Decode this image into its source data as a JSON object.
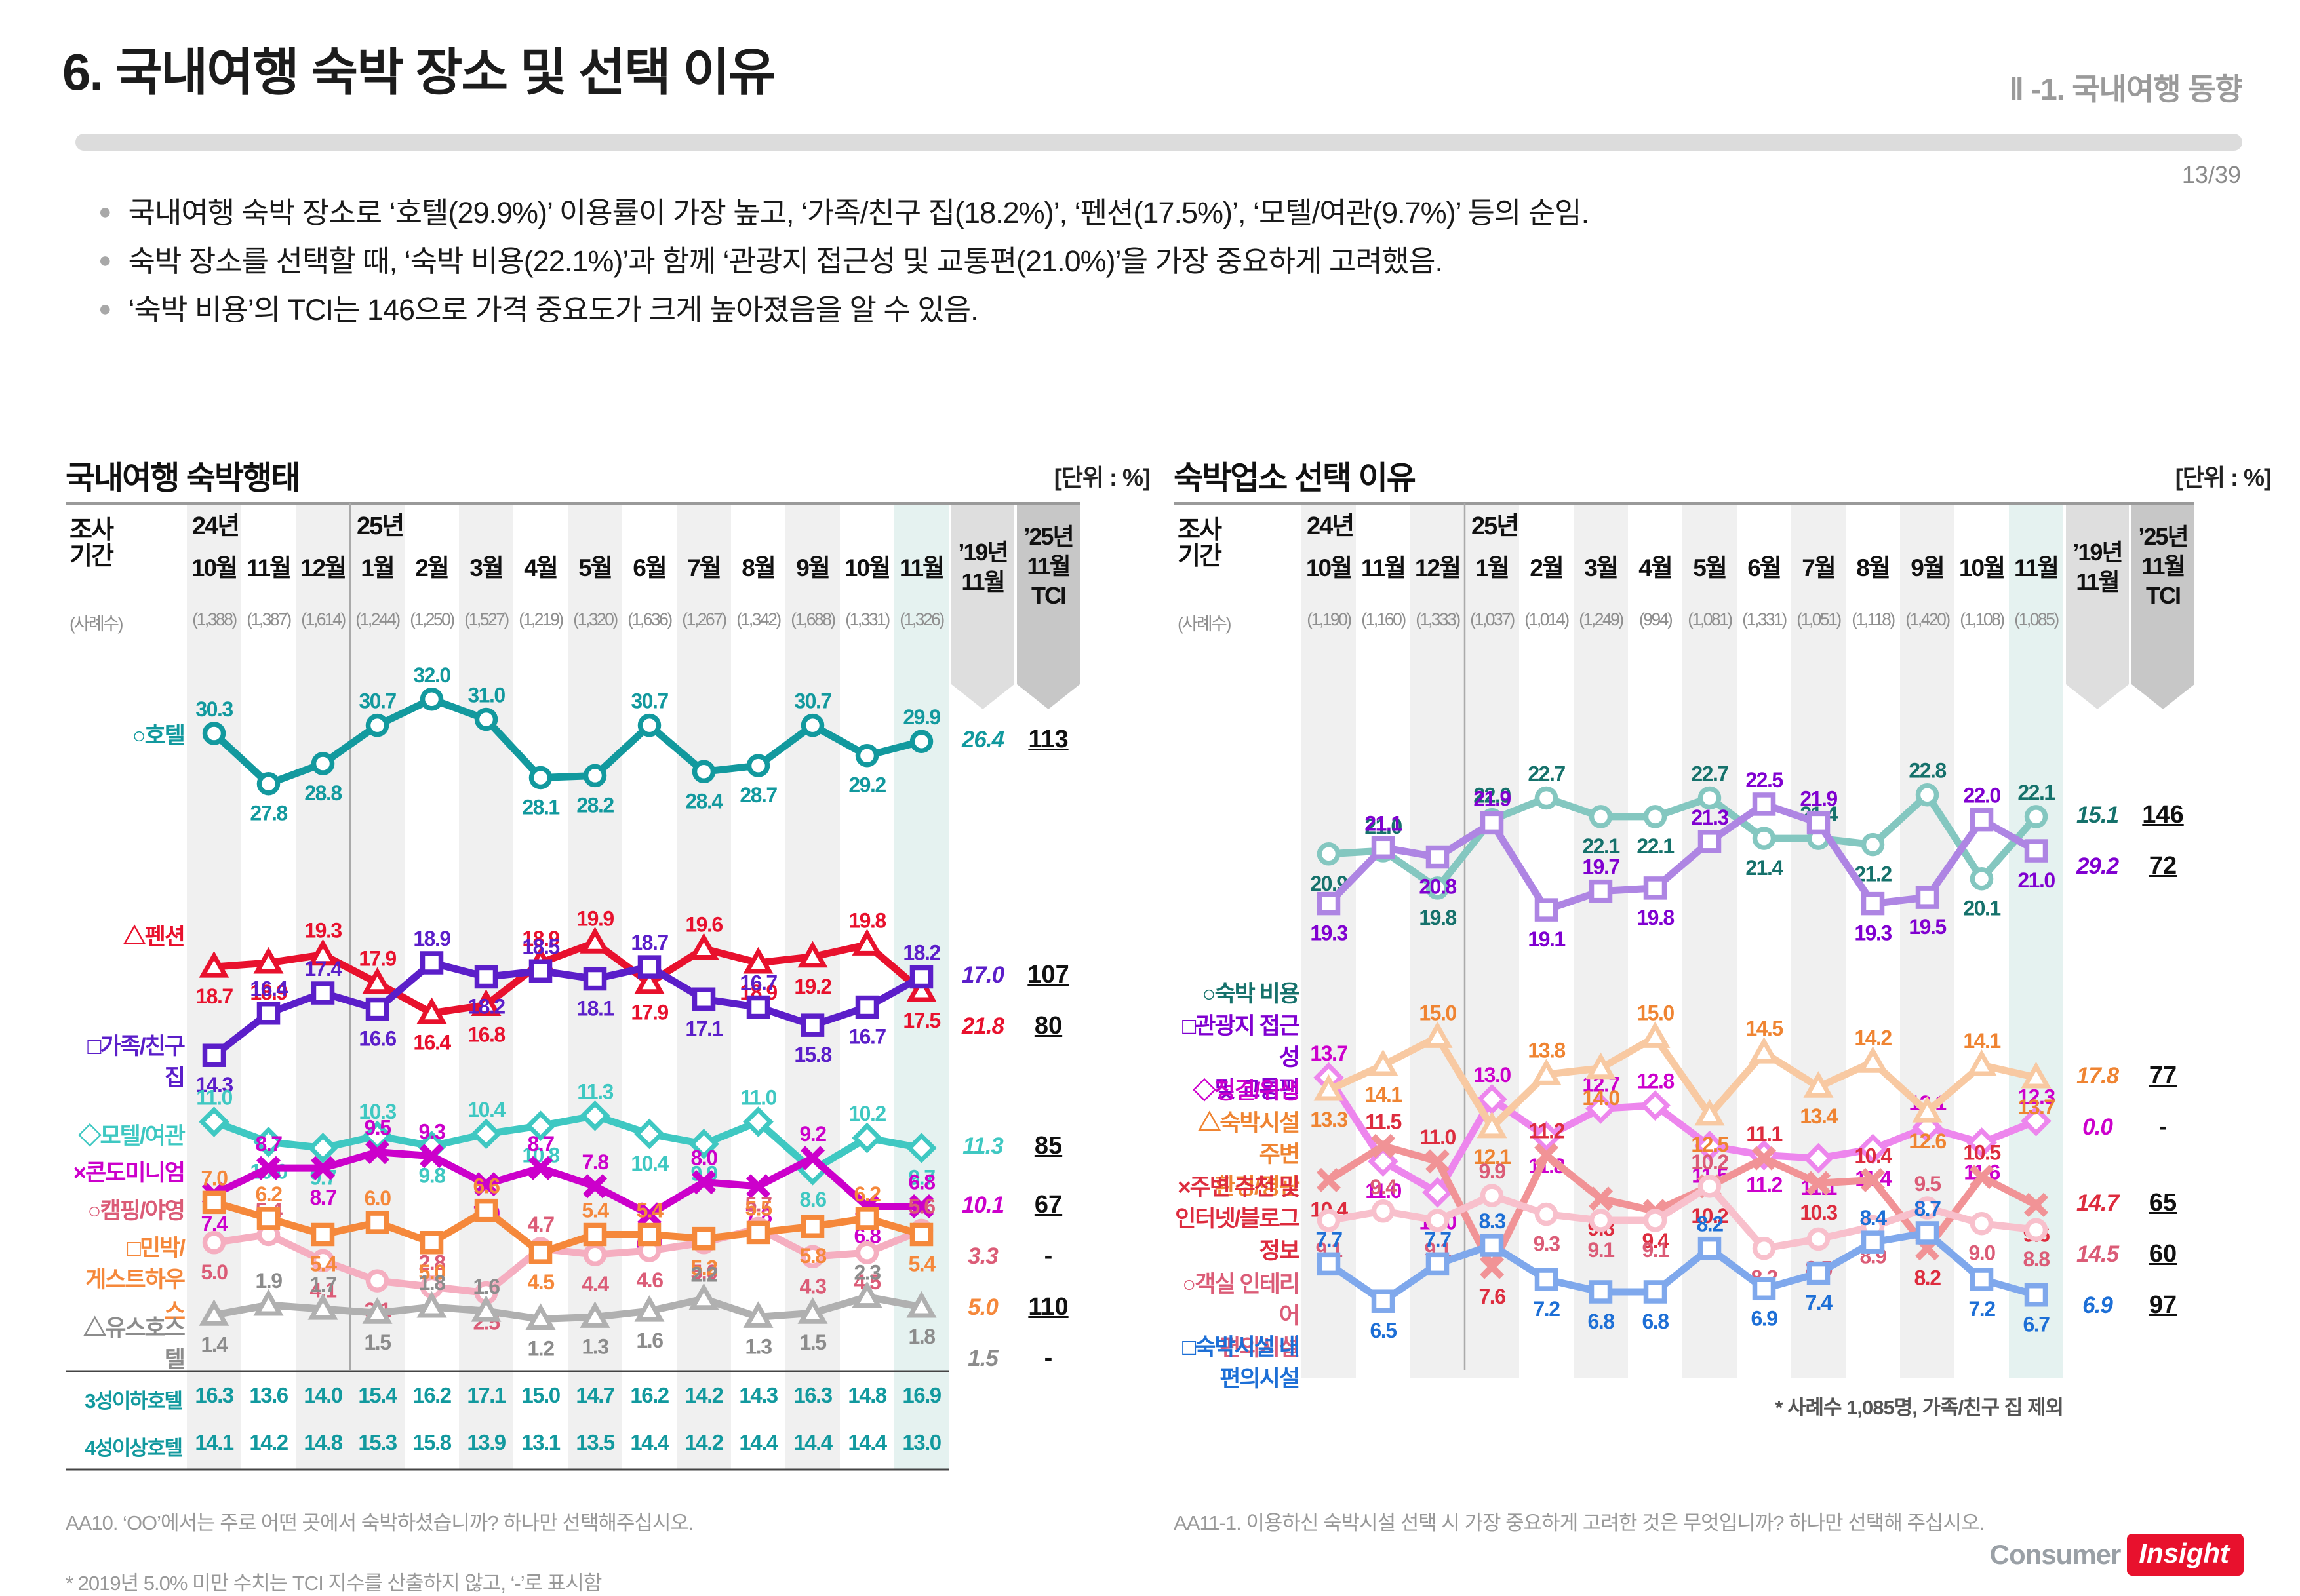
{
  "header": {
    "title": "6. 국내여행 숙박 장소 및 선택 이유",
    "section": "Ⅱ -1. 국내여행 동향",
    "page": "13/39"
  },
  "bullets": [
    "국내여행 숙박 장소로 ‘호텔(29.9%)’ 이용률이 가장 높고, ‘가족/친구 집(18.2%)’, ‘펜션(17.5%)’, ‘모텔/여관(9.7%)’ 등의 순임.",
    "숙박 장소를 선택할 때, ‘숙박 비용(22.1%)’과 함께 ‘관광지 접근성 및 교통편(21.0%)’을 가장 중요하게 고려했음.",
    "‘숙박 비용’의 TCI는 146으로 가격 중요도가 크게 높아졌음을 알 수 있음."
  ],
  "logo": {
    "consumer": "Consumer",
    "insight": "Insight"
  },
  "chart_data": [
    {
      "type": "line",
      "title": "국내여행 숙박행태",
      "unit": "[단위 : %]",
      "row_header": [
        "조사",
        "기간"
      ],
      "year_labels": [
        "24년",
        "25년"
      ],
      "categories": [
        "10월",
        "11월",
        "12월",
        "1월",
        "2월",
        "3월",
        "4월",
        "5월",
        "6월",
        "7월",
        "8월",
        "9월",
        "10월",
        "11월"
      ],
      "cases_label": "(사례수)",
      "cases": [
        "(1,388)",
        "(1,387)",
        "(1,614)",
        "(1,244)",
        "(1,250)",
        "(1,527)",
        "(1,219)",
        "(1,320)",
        "(1,636)",
        "(1,267)",
        "(1,342)",
        "(1,688)",
        "(1,331)",
        "(1,326)"
      ],
      "col19_label": [
        "’19년",
        "11월"
      ],
      "tci_label": [
        "’25년",
        "11월",
        "TCI"
      ],
      "ylim": [
        -1,
        34.5
      ],
      "series": [
        {
          "name": "호텔",
          "legend": [
            "○호텔"
          ],
          "marker": "circle",
          "color": "#12999E",
          "line": "#12999E",
          "values": [
            30.3,
            27.8,
            28.8,
            30.7,
            32.0,
            31.0,
            28.1,
            28.2,
            30.7,
            28.4,
            28.7,
            30.7,
            29.2,
            29.9
          ],
          "y19": "26.4",
          "tci": "113",
          "legend_top": 433
        },
        {
          "name": "펜션",
          "legend": [
            "△펜션"
          ],
          "marker": "triangle",
          "color": "#E8112D",
          "line": "#E8112D",
          "values": [
            18.7,
            18.9,
            19.3,
            17.9,
            16.4,
            16.8,
            18.9,
            19.9,
            17.9,
            19.6,
            18.9,
            19.2,
            19.8,
            17.5
          ],
          "y19": "21.8",
          "tci": "80",
          "legend_top": 740
        },
        {
          "name": "가족/친구 집",
          "legend": [
            "□가족/친구 집"
          ],
          "marker": "square",
          "color": "#5B1EC9",
          "line": "#5B1EC9",
          "values": [
            14.3,
            16.4,
            17.4,
            16.6,
            18.9,
            18.2,
            18.5,
            18.1,
            18.7,
            17.1,
            16.7,
            15.8,
            16.7,
            18.2
          ],
          "y19": "17.0",
          "tci": "107",
          "legend_top": 907
        },
        {
          "name": "모텔/여관",
          "legend": [
            "◇모텔/여관"
          ],
          "marker": "diamond",
          "color": "#3FC8C2",
          "line": "#3FC8C2",
          "values": [
            11.0,
            10.0,
            9.7,
            10.3,
            9.8,
            10.4,
            10.8,
            11.3,
            10.4,
            9.9,
            11.0,
            8.6,
            10.2,
            9.7
          ],
          "y19": "11.3",
          "tci": "85",
          "legend_top": 1044
        },
        {
          "name": "콘도미니엄",
          "legend": [
            "×콘도미니엄"
          ],
          "marker": "x",
          "color": "#CC00CB",
          "line": "#CC00CB",
          "values": [
            7.4,
            8.7,
            8.7,
            9.5,
            9.3,
            7.9,
            8.7,
            7.8,
            6.4,
            8.0,
            7.8,
            9.2,
            6.8,
            6.8
          ],
          "y19": "10.1",
          "tci": "67",
          "legend_top": 1100
        },
        {
          "name": "캠핑/야영",
          "legend": [
            "○캠핑/야영"
          ],
          "marker": "circle",
          "color": "#DB5C77",
          "line": "#F5AEC0",
          "values": [
            5.0,
            5.4,
            4.1,
            3.1,
            2.8,
            2.5,
            4.7,
            4.4,
            4.6,
            5.0,
            5.7,
            4.3,
            4.5,
            5.6
          ],
          "y19": "3.3",
          "tci": "-",
          "legend_top": 1158
        },
        {
          "name": "민박/게스트하우스",
          "legend": [
            "□민박/",
            "게스트하우스"
          ],
          "marker": "square",
          "color": "#F5883B",
          "line": "#F5883B",
          "values": [
            7.0,
            6.2,
            5.4,
            6.0,
            5.0,
            6.6,
            4.5,
            5.4,
            5.4,
            5.2,
            5.5,
            5.8,
            6.2,
            5.4
          ],
          "y19": "5.0",
          "tci": "110",
          "legend_top": 1215
        },
        {
          "name": "유스호스텔",
          "legend": [
            "△유스호스텔"
          ],
          "marker": "triangle",
          "color": "#8C8C8C",
          "line": "#B0B0B0",
          "values": [
            1.4,
            1.9,
            1.7,
            1.5,
            1.8,
            1.6,
            1.2,
            1.3,
            1.6,
            2.2,
            1.3,
            1.5,
            2.3,
            1.8
          ],
          "y19": "1.5",
          "tci": "-",
          "legend_top": 1337
        }
      ],
      "extra_rows": [
        {
          "label": "3성이하호텔",
          "values": [
            "16.3",
            "13.6",
            "14.0",
            "15.4",
            "16.2",
            "17.1",
            "15.0",
            "14.7",
            "16.2",
            "14.2",
            "14.3",
            "16.3",
            "14.8",
            "16.9"
          ]
        },
        {
          "label": "4성이상호텔",
          "values": [
            "14.1",
            "14.2",
            "14.8",
            "15.3",
            "15.8",
            "13.9",
            "13.1",
            "13.5",
            "14.4",
            "14.2",
            "14.4",
            "14.4",
            "14.4",
            "13.0"
          ]
        }
      ],
      "question": "AA10. ‘OO’에서는 주로 어떤 곳에서 숙박하셨습니까? 하나만 선택해주십시오.",
      "footnote": "* 2019년 5.0% 미만 수치는 TCI 지수를 산출하지 않고, ‘-’로 표시함"
    },
    {
      "type": "line",
      "title": "숙박업소 선택 이유",
      "unit": "[단위 : %]",
      "row_header": [
        "조사",
        "기간"
      ],
      "year_labels": [
        "24년",
        "25년"
      ],
      "categories": [
        "10월",
        "11월",
        "12월",
        "1월",
        "2월",
        "3월",
        "4월",
        "5월",
        "6월",
        "7월",
        "8월",
        "9월",
        "10월",
        "11월"
      ],
      "cases_label": "(사례수)",
      "cases": [
        "(1,190)",
        "(1,160)",
        "(1,333)",
        "(1,037)",
        "(1,014)",
        "(1,249)",
        "(994)",
        "(1,081)",
        "(1,331)",
        "(1,051)",
        "(1,118)",
        "(1,420)",
        "(1,108)",
        "(1,085)"
      ],
      "col19_label": [
        "’19년",
        "11월"
      ],
      "tci_label": [
        "’25년",
        "11월",
        "TCI"
      ],
      "ylim": [
        4.5,
        27.5
      ],
      "series": [
        {
          "name": "숙박 비용",
          "legend": [
            "○숙박 비용"
          ],
          "marker": "circle",
          "color": "#15716B",
          "line": "#84C7C0",
          "values": [
            20.9,
            21.0,
            19.8,
            22.0,
            22.7,
            22.1,
            22.1,
            22.7,
            21.4,
            21.4,
            21.2,
            22.8,
            20.1,
            22.1
          ],
          "y19": "15.1",
          "tci": "146",
          "legend_top": 827
        },
        {
          "name": "관광지 접근성 및 교통편",
          "legend": [
            "□관광지 접근성",
            "및 교통편"
          ],
          "marker": "square",
          "color": "#8000D0",
          "line": "#AE85E3",
          "values": [
            19.3,
            21.1,
            20.8,
            21.9,
            19.1,
            19.7,
            19.8,
            21.3,
            22.5,
            21.9,
            19.3,
            19.5,
            22.0,
            21.0
          ],
          "y19": "29.2",
          "tci": "72",
          "legend_top": 876
        },
        {
          "name": "청결/위생",
          "legend": [
            "◇청결/위생"
          ],
          "marker": "diamond",
          "color": "#CC00CC",
          "line": "#ED86ED",
          "values": [
            13.7,
            11.0,
            10.0,
            13.0,
            11.8,
            12.7,
            12.8,
            11.5,
            11.2,
            11.1,
            11.4,
            12.1,
            11.6,
            12.3
          ],
          "y19": "0.0",
          "tci": "-",
          "legend_top": 975
        },
        {
          "name": "숙박시설 주변 환경/경관",
          "legend": [
            "△숙박시설 주변",
            "환경/경관"
          ],
          "marker": "triangle",
          "color": "#EF8432",
          "line": "#F8C9A2",
          "values": [
            13.3,
            14.1,
            15.0,
            12.1,
            13.8,
            14.0,
            15.0,
            12.5,
            14.5,
            13.4,
            14.2,
            12.6,
            14.1,
            13.7
          ],
          "y19": "17.8",
          "tci": "77",
          "legend_top": 1024
        },
        {
          "name": "주변 추천 및 인터넷/블로그 정보",
          "legend": [
            "×주변 추천 및",
            "인터넷/블로그",
            "정보"
          ],
          "marker": "x",
          "color": "#DD2C3E",
          "line": "#F19396",
          "values": [
            10.4,
            11.5,
            11.0,
            7.6,
            11.2,
            9.8,
            9.4,
            10.2,
            11.1,
            10.3,
            10.4,
            8.2,
            10.5,
            9.6
          ],
          "y19": "14.7",
          "tci": "65",
          "legend_top": 1122
        },
        {
          "name": "객실 인테리어 편의시설",
          "legend": [
            "○객실 인테리어",
            "편의시설"
          ],
          "marker": "circle",
          "color": "#DB5C77",
          "line": "#F8C0CC",
          "values": [
            9.1,
            9.4,
            9.1,
            9.9,
            9.3,
            9.1,
            9.1,
            10.2,
            8.2,
            8.5,
            8.9,
            9.5,
            9.0,
            8.8
          ],
          "y19": "14.5",
          "tci": "60",
          "legend_top": 1270
        },
        {
          "name": "숙박시설 내 편의시설",
          "legend": [
            "□숙박시설 내",
            "편의시설"
          ],
          "marker": "square",
          "color": "#1D6FD6",
          "line": "#7FA8EC",
          "values": [
            7.7,
            6.5,
            7.7,
            8.3,
            7.2,
            6.8,
            6.8,
            8.2,
            6.9,
            7.4,
            8.4,
            8.7,
            7.2,
            6.7
          ],
          "y19": "6.9",
          "tci": "97",
          "legend_top": 1366
        }
      ],
      "extra_rows": [],
      "note": "* 사례수 1,085명, 가족/친구 집 제외",
      "question": "AA11-1. 이용하신 숙박시설 선택 시 가장 중요하게 고려한 것은 무엇입니까? 하나만 선택해 주십시오."
    }
  ]
}
